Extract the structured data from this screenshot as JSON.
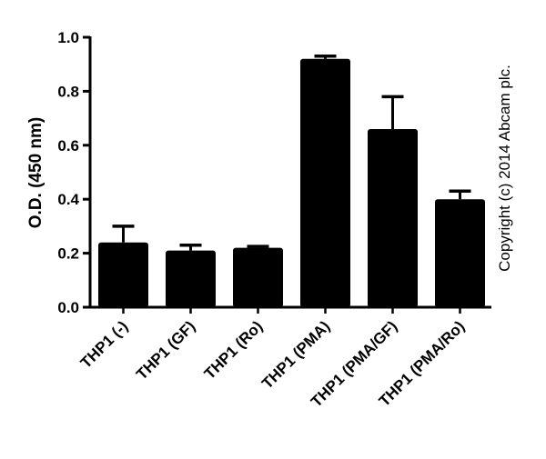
{
  "chart_data": {
    "type": "bar",
    "title": "",
    "xlabel": "",
    "ylabel": "O.D. (450 nm)",
    "ylim": [
      0,
      1.0
    ],
    "yticks": [
      "0.0",
      "0.2",
      "0.4",
      "0.6",
      "0.8",
      "1.0"
    ],
    "grid": false,
    "legend": null,
    "categories": [
      "THP1 (-)",
      "THP1 (GF)",
      "THP1 (Ro)",
      "THP1 (PMA)",
      "THP1 (PMA/GF)",
      "THP1 (PMA/Ro)"
    ],
    "values": [
      0.24,
      0.21,
      0.22,
      0.92,
      0.66,
      0.4
    ],
    "errors": [
      0.06,
      0.02,
      0.005,
      0.01,
      0.12,
      0.03
    ],
    "bar_color": "#000000",
    "annotation": "Copyright (c) 2014 Abcam plc."
  }
}
